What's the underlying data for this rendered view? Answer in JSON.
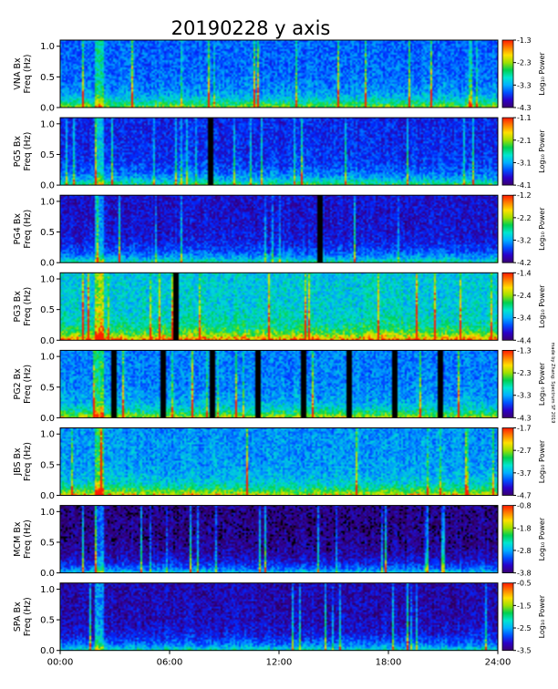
{
  "chart_data": {
    "type": "heatmap",
    "title": "20190228 y axis",
    "x_tick_labels": [
      "00:00",
      "06:00",
      "12:00",
      "18:00",
      "24:00"
    ],
    "x_range_hours": [
      0,
      24
    ],
    "y_range_hz": [
      0,
      1.1
    ],
    "y_tick_labels": [
      "0.0",
      "0.5",
      "1.0"
    ],
    "colorbar_label": "Log₁₀ Power",
    "colorbar_colors": [
      "#3a0070",
      "#2a00c8",
      "#0050ff",
      "#00b0ff",
      "#00e6d0",
      "#00d050",
      "#a0e000",
      "#ffe000",
      "#ff8000",
      "#ff1a00"
    ],
    "credit": "made by Zhang: Spectrum SF 2019",
    "panels": [
      {
        "station": "VNA",
        "label1": "VNA  Bx",
        "label2": "Freq (Hz)",
        "cb_max": "-1.3",
        "cb_ticks": [
          "-1.3",
          "-2.3",
          "-3.3",
          "-4.3"
        ],
        "brightness": 0.38,
        "gaps": []
      },
      {
        "station": "PG5",
        "label1": "PG5  Bx",
        "label2": "Freq (Hz)",
        "cb_max": "-1.1",
        "cb_ticks": [
          "-1.1",
          "-2.1",
          "-3.1",
          "-4.1"
        ],
        "brightness": 0.28,
        "gaps": [
          8.2
        ]
      },
      {
        "station": "PG4",
        "label1": "PG4  Bx",
        "label2": "Freq (Hz)",
        "cb_max": "-1.2",
        "cb_ticks": [
          "-1.2",
          "-2.2",
          "-3.2",
          "-4.2"
        ],
        "brightness": 0.22,
        "gaps": [
          14.2
        ]
      },
      {
        "station": "PG3",
        "label1": "PG3  Bx",
        "label2": "Freq (Hz)",
        "cb_max": "-1.4",
        "cb_ticks": [
          "-1.4",
          "-2.4",
          "-3.4",
          "-4.4"
        ],
        "brightness": 0.55,
        "gaps": [
          6.3
        ]
      },
      {
        "station": "PG2",
        "label1": "PG2  Bx",
        "label2": "Freq (Hz)",
        "cb_max": "-1.3",
        "cb_ticks": [
          "-1.3",
          "-2.3",
          "-3.3",
          "-4.3"
        ],
        "brightness": 0.42,
        "gaps": [
          2.9,
          5.6,
          8.3,
          10.8,
          13.3,
          15.8,
          18.3,
          20.8
        ]
      },
      {
        "station": "JBS",
        "label1": "JBS  Bx",
        "label2": "Freq (Hz)",
        "cb_max": "-1.7",
        "cb_ticks": [
          "-1.7",
          "-2.7",
          "-3.7",
          "-4.7"
        ],
        "brightness": 0.45,
        "gaps": []
      },
      {
        "station": "MCM",
        "label1": "MCM  Bx",
        "label2": "Freq (Hz)",
        "cb_max": "-0.8",
        "cb_ticks": [
          "-0.8",
          "-1.8",
          "-2.8",
          "-3.8"
        ],
        "brightness": 0.12,
        "gaps": []
      },
      {
        "station": "SPA",
        "label1": "SPA  Bx",
        "label2": "Freq (Hz)",
        "cb_max": "-0.5",
        "cb_ticks": [
          "-0.5",
          "-1.5",
          "-2.5",
          "-3.5"
        ],
        "brightness": 0.18,
        "gaps": []
      }
    ]
  }
}
